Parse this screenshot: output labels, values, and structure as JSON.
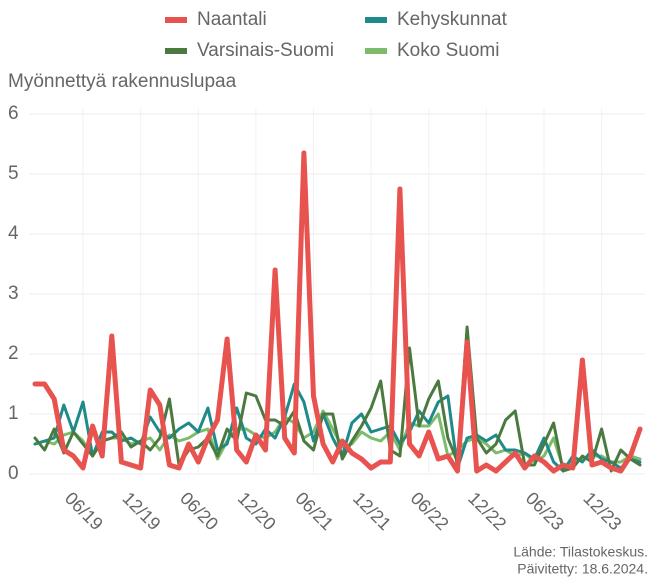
{
  "chart_data": {
    "type": "line",
    "subtitle": "Myönnettyä rakennuslupaa",
    "source": "Lähde: Tilastokeskus.",
    "updated": "Päivitetty: 18.6.2024.",
    "categories": [
      null,
      null,
      null,
      null,
      null,
      "06/19",
      null,
      null,
      null,
      null,
      null,
      "12/19",
      null,
      null,
      null,
      null,
      null,
      "06/20",
      null,
      null,
      null,
      null,
      null,
      "12/20",
      null,
      null,
      null,
      null,
      null,
      "06/21",
      null,
      null,
      null,
      null,
      null,
      "12/21",
      null,
      null,
      null,
      null,
      null,
      "06/22",
      null,
      null,
      null,
      null,
      null,
      "12/22",
      null,
      null,
      null,
      null,
      null,
      "06/23",
      null,
      null,
      null,
      null,
      null,
      "12/23",
      null,
      null,
      null,
      null
    ],
    "series": [
      {
        "name": "Naantali",
        "color": "#e8524f",
        "values": [
          1.5,
          1.5,
          1.25,
          0.4,
          0.3,
          0.1,
          0.8,
          0.3,
          2.3,
          0.2,
          0.15,
          0.1,
          1.4,
          1.15,
          0.15,
          0.1,
          0.5,
          0.2,
          0.6,
          0.9,
          2.25,
          0.4,
          0.2,
          0.65,
          0.4,
          3.4,
          0.6,
          0.35,
          5.35,
          1.3,
          0.5,
          0.2,
          0.55,
          0.35,
          0.25,
          0.1,
          0.2,
          0.2,
          4.75,
          0.5,
          0.3,
          0.7,
          0.25,
          0.3,
          0.05,
          2.2,
          0.05,
          0.15,
          0.05,
          0.2,
          0.35,
          0.1,
          0.3,
          0.2,
          0.05,
          0.15,
          0.1,
          1.9,
          0.15,
          0.2,
          0.1,
          0.05,
          0.3,
          0.75
        ]
      },
      {
        "name": "Varsinais-Suomi",
        "color": "#4a7a3f",
        "values": [
          0.6,
          0.4,
          0.75,
          0.35,
          0.7,
          0.5,
          0.3,
          0.55,
          0.6,
          0.7,
          0.45,
          0.55,
          0.4,
          0.6,
          1.25,
          0.15,
          0.4,
          0.45,
          0.6,
          0.3,
          0.75,
          0.55,
          1.35,
          1.3,
          0.9,
          0.9,
          0.8,
          1.05,
          0.55,
          0.4,
          1.0,
          1.0,
          0.25,
          0.55,
          0.8,
          1.1,
          1.55,
          0.4,
          0.3,
          2.1,
          0.8,
          1.25,
          1.55,
          0.6,
          0.2,
          2.45,
          0.6,
          0.35,
          0.5,
          0.9,
          1.05,
          0.15,
          0.15,
          0.5,
          0.85,
          0.05,
          0.1,
          0.3,
          0.2,
          0.75,
          0.05,
          0.4,
          0.25,
          0.15
        ]
      },
      {
        "name": "Kehyskunnat",
        "color": "#1f8a8a",
        "values": [
          0.5,
          0.55,
          0.6,
          1.15,
          0.7,
          1.2,
          0.3,
          0.7,
          0.7,
          0.55,
          0.6,
          0.5,
          0.95,
          0.7,
          0.6,
          0.75,
          0.85,
          0.7,
          1.1,
          0.4,
          0.5,
          1.1,
          0.6,
          0.5,
          0.75,
          0.6,
          0.95,
          1.5,
          1.2,
          0.55,
          1.0,
          0.6,
          0.3,
          0.85,
          1.0,
          0.7,
          0.75,
          0.8,
          0.5,
          0.7,
          1.05,
          0.85,
          1.2,
          1.3,
          0.1,
          0.6,
          0.65,
          0.55,
          0.65,
          0.4,
          0.4,
          0.35,
          0.25,
          0.6,
          0.2,
          0.05,
          0.3,
          0.2,
          0.4,
          0.25,
          0.2,
          0.1,
          0.25,
          0.2
        ]
      },
      {
        "name": "Koko Suomi",
        "color": "#7dbb6a",
        "values": [
          0.5,
          0.55,
          0.5,
          0.65,
          0.7,
          0.55,
          0.3,
          0.55,
          0.6,
          0.6,
          0.5,
          0.55,
          0.6,
          0.4,
          0.65,
          0.55,
          0.6,
          0.7,
          0.75,
          0.25,
          0.55,
          0.75,
          0.75,
          0.65,
          0.6,
          0.7,
          0.95,
          0.85,
          0.6,
          0.7,
          1.05,
          0.75,
          0.45,
          0.5,
          0.7,
          0.6,
          0.55,
          0.7,
          0.4,
          0.85,
          0.8,
          0.8,
          1.0,
          0.3,
          0.4,
          0.55,
          0.6,
          0.5,
          0.35,
          0.4,
          0.3,
          0.35,
          0.2,
          0.3,
          0.6,
          0.1,
          0.2,
          0.25,
          0.3,
          0.3,
          0.2,
          0.2,
          0.3,
          0.25
        ]
      }
    ],
    "ylim": [
      0,
      6.1
    ],
    "yticks": [
      0,
      1,
      2,
      3,
      4,
      5,
      6
    ],
    "grid": true
  }
}
